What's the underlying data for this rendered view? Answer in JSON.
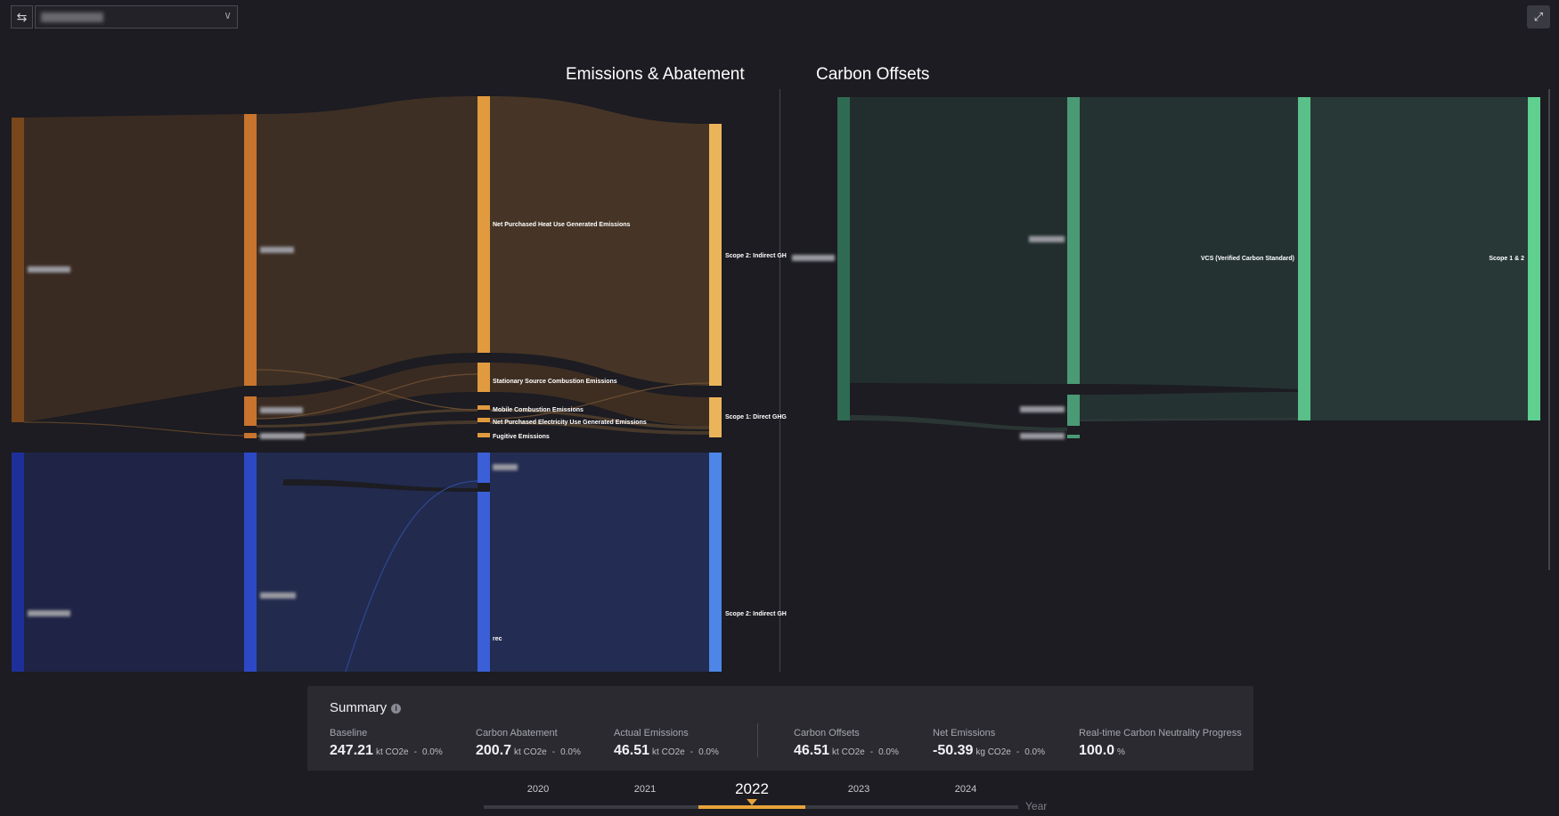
{
  "header": {
    "swap_icon": "swap-arrows-icon",
    "expand_icon": "expand-icon"
  },
  "titles": {
    "emissions": "Emissions & Abatement",
    "offsets": "Carbon Offsets"
  },
  "emissions_labels": {
    "heat": "Net Purchased Heat Use Generated Emissions",
    "stationary": "Stationary Source Combustion Emissions",
    "mobile": "Mobile Combustion Emissions",
    "electricity": "Net Purchased Electricity Use Generated Emissions",
    "fugitive": "Fugitive Emissions",
    "scope2": "Scope 2: Indirect GH",
    "scope1": "Scope 1: Direct GHG",
    "rec": "rec",
    "scope2_abatement": "Scope 2: Indirect GH"
  },
  "offset_labels": {
    "vcs": "VCS (Verified Carbon Standard)",
    "scope12": "Scope 1 & 2"
  },
  "colors": {
    "emissions_node": "#e29a3f",
    "emissions_scope": "#eab55a",
    "abatement_node": "#3a5fd6",
    "offset_node": "#4a9a75",
    "offset_scope": "#5fd08f",
    "accent": "#e7a33a"
  },
  "summary": {
    "title": "Summary",
    "info_icon": "info-icon",
    "metrics": [
      {
        "label": "Baseline",
        "value": "247.21",
        "unit": "kt CO2e",
        "sep": "-",
        "change": "0.0%"
      },
      {
        "label": "Carbon Abatement",
        "value": "200.7",
        "unit": "kt CO2e",
        "sep": "-",
        "change": "0.0%"
      },
      {
        "label": "Actual Emissions",
        "value": "46.51",
        "unit": "kt CO2e",
        "sep": "-",
        "change": "0.0%"
      },
      {
        "label": "Carbon Offsets",
        "value": "46.51",
        "unit": "kt CO2e",
        "sep": "-",
        "change": "0.0%"
      },
      {
        "label": "Net Emissions",
        "value": "-50.39",
        "unit": "kg CO2e",
        "sep": "-",
        "change": "0.0%"
      },
      {
        "label": "Real-time Carbon Neutrality Progress",
        "value": "100.0",
        "unit": "%",
        "sep": "",
        "change": ""
      }
    ]
  },
  "timeline": {
    "years": [
      "2020",
      "2021",
      "2022",
      "2023",
      "2024"
    ],
    "selected": "2022",
    "axis_label": "Year"
  }
}
